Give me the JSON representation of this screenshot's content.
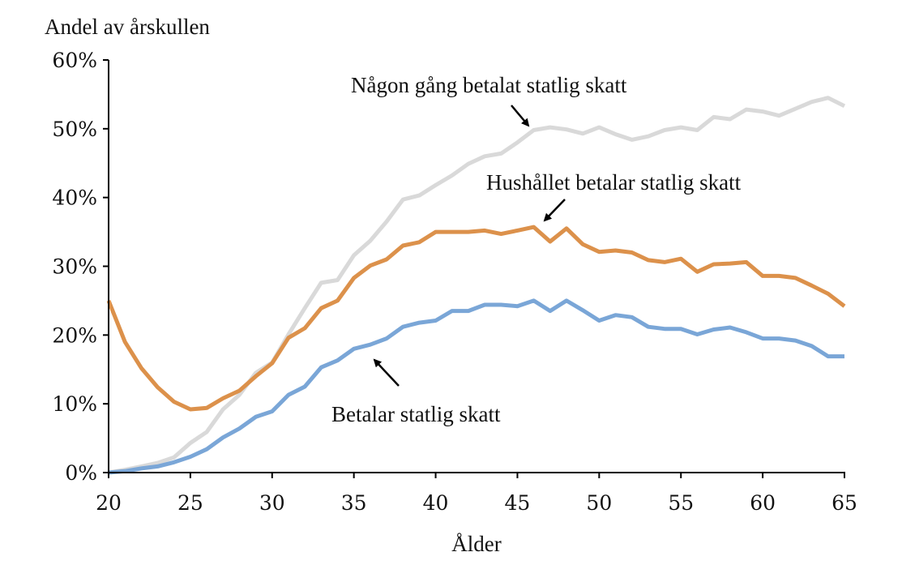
{
  "chart_data": {
    "type": "line",
    "title": "",
    "ylabel": "Andel av årskullen",
    "xlabel": "Ålder",
    "xlim": [
      20,
      65
    ],
    "ylim": [
      0,
      60
    ],
    "x_ticks": [
      20,
      25,
      30,
      35,
      40,
      45,
      50,
      55,
      60,
      65
    ],
    "y_ticks": [
      0,
      10,
      20,
      30,
      40,
      50,
      60
    ],
    "y_tick_labels": [
      "0%",
      "10%",
      "20%",
      "30%",
      "40%",
      "50%",
      "60%"
    ],
    "x_tick_labels": [
      "20",
      "25",
      "30",
      "35",
      "40",
      "45",
      "50",
      "55",
      "60",
      "65"
    ],
    "grid": false,
    "x": [
      20,
      21,
      22,
      23,
      24,
      25,
      26,
      27,
      28,
      29,
      30,
      31,
      32,
      33,
      34,
      35,
      36,
      37,
      38,
      39,
      40,
      41,
      42,
      43,
      44,
      45,
      46,
      47,
      48,
      49,
      50,
      51,
      52,
      53,
      54,
      55,
      56,
      57,
      58,
      59,
      60,
      61,
      62,
      63,
      64,
      65
    ],
    "series": [
      {
        "key": "nagon",
        "color": "#d9d9d9",
        "values": [
          0,
          0.4,
          0.9,
          1.4,
          2.2,
          4.3,
          5.9,
          9.2,
          11.3,
          14.5,
          16.0,
          20.1,
          23.9,
          27.6,
          28.0,
          31.6,
          33.7,
          36.5,
          39.7,
          40.3,
          41.8,
          43.2,
          44.9,
          46.0,
          46.4,
          48.0,
          49.8,
          50.2,
          49.9,
          49.3,
          50.2,
          49.2,
          48.4,
          48.9,
          49.8,
          50.2,
          49.8,
          51.7,
          51.4,
          52.8,
          52.5,
          51.9,
          52.9,
          53.9,
          54.5,
          53.3
        ]
      },
      {
        "key": "hushallet",
        "color": "#dc914b",
        "values": [
          25.0,
          19.0,
          15.2,
          12.4,
          10.3,
          9.2,
          9.4,
          10.8,
          11.9,
          14.0,
          15.9,
          19.6,
          21.0,
          23.9,
          25.0,
          28.3,
          30.1,
          31.0,
          33.0,
          33.5,
          35.0,
          35.0,
          35.0,
          35.2,
          34.7,
          35.2,
          35.7,
          33.6,
          35.5,
          33.2,
          32.1,
          32.3,
          32.0,
          30.9,
          30.6,
          31.1,
          29.2,
          30.3,
          30.4,
          30.6,
          28.6,
          28.6,
          28.3,
          27.2,
          26.0,
          24.2
        ]
      },
      {
        "key": "betalar",
        "color": "#7aa6d7",
        "values": [
          0,
          0.2,
          0.6,
          0.9,
          1.5,
          2.3,
          3.4,
          5.1,
          6.4,
          8.1,
          8.9,
          11.3,
          12.5,
          15.3,
          16.3,
          18.0,
          18.6,
          19.5,
          21.2,
          21.8,
          22.1,
          23.5,
          23.5,
          24.4,
          24.4,
          24.2,
          25.0,
          23.5,
          25.0,
          23.6,
          22.1,
          22.9,
          22.6,
          21.2,
          20.9,
          20.9,
          20.1,
          20.8,
          21.1,
          20.4,
          19.5,
          19.5,
          19.2,
          18.4,
          16.9,
          16.9
        ]
      }
    ],
    "annotations": [
      {
        "key": "nagon",
        "text": "Någon gång betalat statlig skatt"
      },
      {
        "key": "hushallet",
        "text": "Hushållet betalar statlig skatt"
      },
      {
        "key": "betalar",
        "text": "Betalar statlig skatt"
      }
    ]
  }
}
